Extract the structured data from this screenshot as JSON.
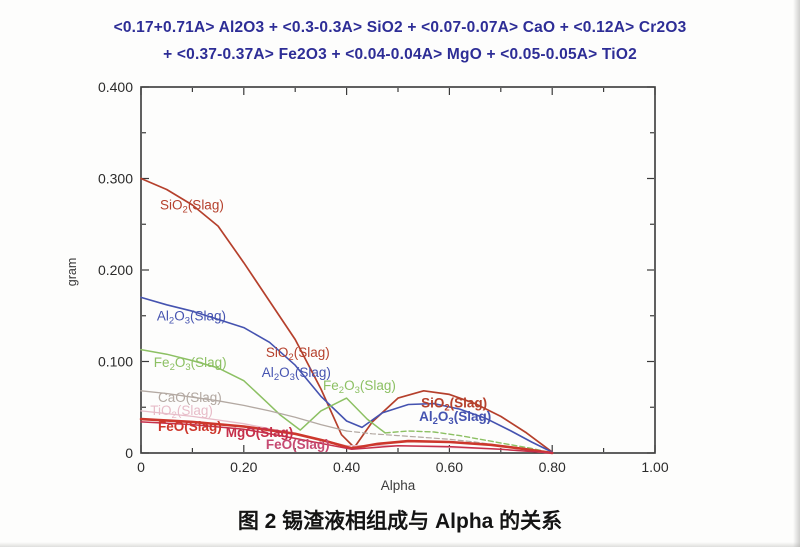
{
  "title": {
    "line1": "<0.17+0.71A> Al2O3 +  <0.3-0.3A> SiO2 +  <0.07-0.07A> CaO + <0.12A> Cr2O3",
    "line2": "+ <0.37-0.37A> Fe2O3 +  <0.04-0.04A> MgO +  <0.05-0.05A> TiO2",
    "color": "#2d2d96"
  },
  "caption": "图 2  锡渣液相组成与 Alpha 的关系",
  "chart_data": {
    "type": "line",
    "xlabel": "Alpha",
    "ylabel": "gram",
    "xlim": [
      0,
      1.0
    ],
    "ylim": [
      0,
      0.4
    ],
    "grid": false,
    "legend": "inline-labels",
    "axis_color": "#3a3a3a",
    "tick_label_color": "#2b2b2b",
    "xticks": {
      "major": [
        0,
        0.2,
        0.4,
        0.6,
        0.8,
        1.0
      ],
      "labels": [
        "0",
        "0.20",
        "0.40",
        "0.60",
        "0.80",
        "1.00"
      ],
      "minor": [
        0.1,
        0.3,
        0.5,
        0.7,
        0.9
      ]
    },
    "yticks": {
      "major": [
        0,
        0.1,
        0.2,
        0.3,
        0.4
      ],
      "labels": [
        "0",
        "0.100",
        "0.200",
        "0.300",
        "0.400"
      ],
      "minor": [
        0.05,
        0.15,
        0.25,
        0.35
      ]
    },
    "series": [
      {
        "name": "SiO2(Slag)",
        "color": "#b5402c",
        "width": 1.7,
        "x": [
          0,
          0.05,
          0.1,
          0.15,
          0.2,
          0.25,
          0.3,
          0.35,
          0.39,
          0.415,
          0.45,
          0.5,
          0.55,
          0.6,
          0.65,
          0.7,
          0.75,
          0.8
        ],
        "y": [
          0.3,
          0.288,
          0.271,
          0.248,
          0.208,
          0.166,
          0.124,
          0.07,
          0.02,
          0.006,
          0.034,
          0.06,
          0.068,
          0.064,
          0.054,
          0.04,
          0.022,
          0.001
        ]
      },
      {
        "name": "Al2O3(Slag)",
        "color": "#4553b0",
        "width": 1.6,
        "x": [
          0,
          0.05,
          0.1,
          0.15,
          0.2,
          0.25,
          0.3,
          0.35,
          0.4,
          0.43,
          0.47,
          0.52,
          0.57,
          0.62,
          0.67,
          0.72,
          0.76,
          0.8
        ],
        "y": [
          0.17,
          0.162,
          0.155,
          0.146,
          0.137,
          0.121,
          0.096,
          0.062,
          0.035,
          0.028,
          0.044,
          0.053,
          0.054,
          0.048,
          0.038,
          0.024,
          0.012,
          0.001
        ]
      },
      {
        "name": "Fe2O3(Slag)",
        "color": "#8cc063",
        "width": 1.5,
        "x": [
          0,
          0.05,
          0.1,
          0.15,
          0.2,
          0.24,
          0.27,
          0.31,
          0.35,
          0.4,
          0.44,
          0.475
        ],
        "y": [
          0.113,
          0.108,
          0.101,
          0.093,
          0.079,
          0.058,
          0.042,
          0.025,
          0.046,
          0.06,
          0.037,
          0.022
        ]
      },
      {
        "name": "Fe2O3(Slag) dashed tail",
        "color": "#8cc063",
        "width": 1.4,
        "dash": "5 3",
        "x": [
          0.475,
          0.52,
          0.57,
          0.62,
          0.67,
          0.72,
          0.76,
          0.8
        ],
        "y": [
          0.022,
          0.024,
          0.023,
          0.019,
          0.014,
          0.009,
          0.005,
          0.0
        ]
      },
      {
        "name": "CaO(Slag)",
        "color": "#b3a9a2",
        "width": 1.3,
        "x": [
          0,
          0.05,
          0.1,
          0.15,
          0.2,
          0.25,
          0.3,
          0.35,
          0.4
        ],
        "y": [
          0.068,
          0.065,
          0.061,
          0.057,
          0.052,
          0.046,
          0.039,
          0.031,
          0.024
        ]
      },
      {
        "name": "CaO(Slag) dashed tail",
        "color": "#b3a9a2",
        "width": 1.2,
        "dash": "5 3",
        "x": [
          0.4,
          0.45,
          0.5,
          0.55,
          0.6,
          0.65,
          0.7,
          0.75,
          0.8
        ],
        "y": [
          0.024,
          0.021,
          0.019,
          0.017,
          0.015,
          0.012,
          0.008,
          0.004,
          0.0
        ]
      },
      {
        "name": "TiO2(Slag)",
        "color": "#e7bcc8",
        "width": 1.3,
        "x": [
          0,
          0.1,
          0.2,
          0.3,
          0.4,
          0.5,
          0.6,
          0.7,
          0.8
        ],
        "y": [
          0.046,
          0.04,
          0.032,
          0.021,
          0.008,
          0.008,
          0.006,
          0.004,
          0.0
        ]
      },
      {
        "name": "FeO(Slag)",
        "color": "#cd372c",
        "width": 2.6,
        "x": [
          0,
          0.1,
          0.2,
          0.3,
          0.36,
          0.41,
          0.46,
          0.52,
          0.6,
          0.68,
          0.75,
          0.8
        ],
        "y": [
          0.037,
          0.034,
          0.029,
          0.021,
          0.013,
          0.005,
          0.01,
          0.013,
          0.012,
          0.009,
          0.004,
          0.0
        ]
      },
      {
        "name": "MgO(Slag)",
        "color": "#c62f4a",
        "width": 1.5,
        "x": [
          0,
          0.1,
          0.2,
          0.3,
          0.41,
          0.5,
          0.6,
          0.7,
          0.8
        ],
        "y": [
          0.034,
          0.031,
          0.026,
          0.016,
          0.004,
          0.008,
          0.007,
          0.004,
          0.0
        ]
      }
    ],
    "labels": [
      {
        "parts": [
          {
            "t": "SiO"
          },
          {
            "t": "2",
            "s": 1
          },
          {
            "t": "(Slag)"
          }
        ],
        "x": 0.037,
        "y": 0.266,
        "color": "#b5402c"
      },
      {
        "parts": [
          {
            "t": "Al"
          },
          {
            "t": "2",
            "s": 1
          },
          {
            "t": "O"
          },
          {
            "t": "3",
            "s": 1
          },
          {
            "t": "(Slag)"
          }
        ],
        "x": 0.031,
        "y": 0.145,
        "color": "#4553b0"
      },
      {
        "parts": [
          {
            "t": "Fe"
          },
          {
            "t": "2",
            "s": 1
          },
          {
            "t": "O"
          },
          {
            "t": "3",
            "s": 1
          },
          {
            "t": "(Slag)"
          }
        ],
        "x": 0.025,
        "y": 0.094,
        "color": "#8cc063"
      },
      {
        "parts": [
          {
            "t": "CaO(Slag)"
          }
        ],
        "x": 0.033,
        "y": 0.056,
        "color": "#b3a9a2"
      },
      {
        "parts": [
          {
            "t": "TiO"
          },
          {
            "t": "2",
            "s": 1
          },
          {
            "t": "(Slag)"
          }
        ],
        "x": 0.018,
        "y": 0.0415,
        "color": "#e7bcc8"
      },
      {
        "parts": [
          {
            "t": "FeO(Slag)"
          }
        ],
        "x": 0.033,
        "y": 0.024,
        "color": "#cd372c",
        "bold": true
      },
      {
        "parts": [
          {
            "t": "MgO(Slag)"
          }
        ],
        "x": 0.165,
        "y": 0.0175,
        "color": "#c62f4a",
        "bold": true
      },
      {
        "parts": [
          {
            "t": "FeO(Slag)"
          }
        ],
        "x": 0.243,
        "y": 0.0044,
        "color": "#c64a72",
        "bold": true
      },
      {
        "parts": [
          {
            "t": "SiO"
          },
          {
            "t": "2",
            "s": 1
          },
          {
            "t": "(Slag)"
          }
        ],
        "x": 0.243,
        "y": 0.105,
        "color": "#b5402c"
      },
      {
        "parts": [
          {
            "t": "Al"
          },
          {
            "t": "2",
            "s": 1
          },
          {
            "t": "O"
          },
          {
            "t": "3",
            "s": 1
          },
          {
            "t": "(Slag)"
          }
        ],
        "x": 0.235,
        "y": 0.083,
        "color": "#4553b0"
      },
      {
        "parts": [
          {
            "t": "Fe"
          },
          {
            "t": "2",
            "s": 1
          },
          {
            "t": "O"
          },
          {
            "t": "3",
            "s": 1
          },
          {
            "t": "(Slag)"
          }
        ],
        "x": 0.354,
        "y": 0.069,
        "color": "#8cc063"
      },
      {
        "parts": [
          {
            "t": "SiO"
          },
          {
            "t": "2",
            "s": 1
          },
          {
            "t": "(Slag)"
          }
        ],
        "x": 0.545,
        "y": 0.05,
        "color": "#b5402c",
        "bold": true
      },
      {
        "parts": [
          {
            "t": "Al"
          },
          {
            "t": "2",
            "s": 1
          },
          {
            "t": "O"
          },
          {
            "t": "3",
            "s": 1
          },
          {
            "t": "(Slag)"
          }
        ],
        "x": 0.541,
        "y": 0.035,
        "color": "#4553b0",
        "bold": true
      }
    ]
  }
}
